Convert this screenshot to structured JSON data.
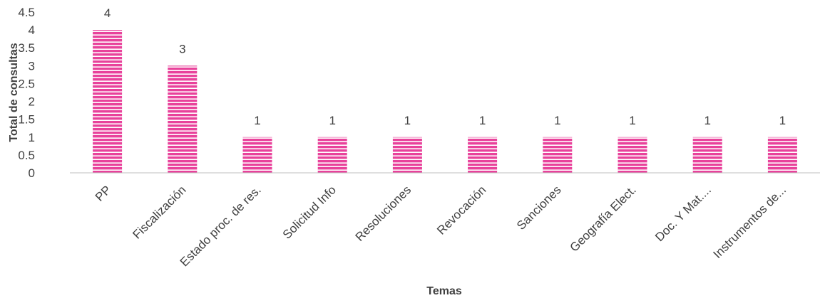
{
  "chart_data": {
    "type": "bar",
    "categories": [
      "PP",
      "Fiscalización",
      "Estado proc. de res.",
      "Solicitud Info",
      "Resoluciones",
      "Revocación",
      "Sanciones",
      "Geografía Elect.",
      "Doc. Y Mat....",
      "Instrumentos de..."
    ],
    "values": [
      4,
      3,
      1,
      1,
      1,
      1,
      1,
      1,
      1,
      1
    ],
    "xlabel": "Temas",
    "ylabel": "Total de consultas",
    "ylim": [
      0,
      4.5
    ],
    "yticks": [
      "0",
      "0.5",
      "1",
      "1.5",
      "2",
      "2.5",
      "3",
      "3.5",
      "4",
      "4.5"
    ],
    "data_labels": true,
    "grid": false,
    "bar_pattern": "horizontal-stripes",
    "colors": {
      "bar": "#e8429b",
      "bar_stripe": "#ffffff",
      "axis": "#bfbfbf",
      "text": "#404040"
    }
  }
}
